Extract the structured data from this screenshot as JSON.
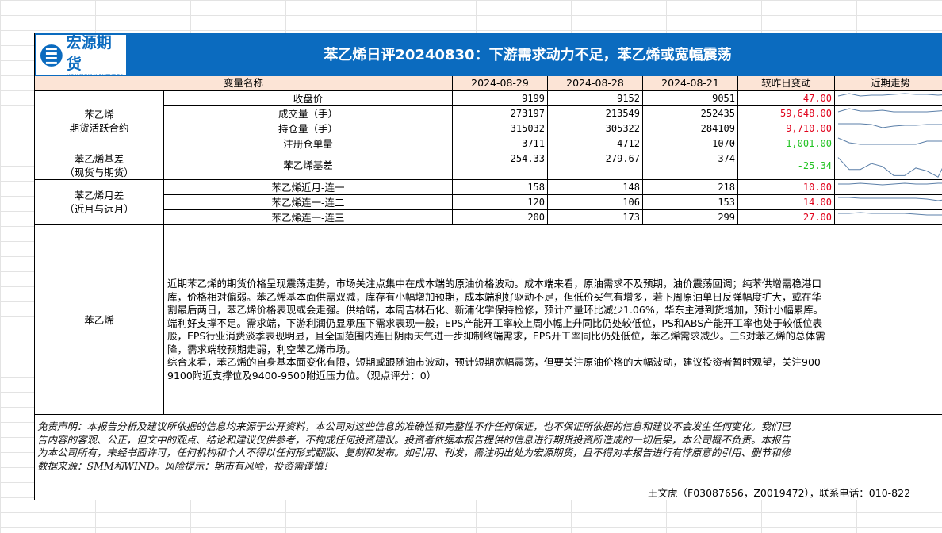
{
  "logo": {
    "cn": "宏源期货",
    "en": "HONGYUAN FUTURES"
  },
  "title": "苯乙烯日评20240830：下游需求动力不足，苯乙烯或宽幅震荡",
  "header": {
    "name": "变量名称",
    "dates": [
      "2024-08-29",
      "2024-08-28",
      "2024-08-21"
    ],
    "change": "较昨日变动",
    "trend": "近期走势"
  },
  "colors": {
    "banner": "#0b6bbf",
    "header_bg": "#fce4d6",
    "up": "#e0001a",
    "down": "#22c322"
  },
  "groups": [
    {
      "label_lines": [
        "苯乙烯",
        "期货活跃合约"
      ]
    },
    {
      "label_lines": [
        "苯乙烯基差",
        "（现货与期货）"
      ]
    },
    {
      "label_lines": [
        "苯乙烯月差",
        "（近月与远月）"
      ]
    }
  ],
  "rows": [
    {
      "name": "收盘价",
      "v": [
        "9199",
        "9152",
        "9051"
      ],
      "change": "47.00",
      "dir": "up"
    },
    {
      "name": "成交量（手）",
      "v": [
        "273197",
        "213549",
        "252435"
      ],
      "change": "59,648.00",
      "dir": "up"
    },
    {
      "name": "持仓量（手）",
      "v": [
        "315032",
        "305322",
        "284109"
      ],
      "change": "9,710.00",
      "dir": "up"
    },
    {
      "name": "注册仓单量",
      "v": [
        "3711",
        "4712",
        "1070"
      ],
      "change": "-1,001.00",
      "dir": "down"
    },
    {
      "name": "苯乙烯基差",
      "v": [
        "254.33",
        "279.67",
        "374"
      ],
      "change": "-25.34",
      "dir": "down"
    },
    {
      "name": "苯乙烯近月-连一",
      "v": [
        "158",
        "148",
        "218"
      ],
      "change": "10.00",
      "dir": "up"
    },
    {
      "name": "苯乙烯连一-连二",
      "v": [
        "120",
        "106",
        "153"
      ],
      "change": "14.00",
      "dir": "up"
    },
    {
      "name": "苯乙烯连一-连三",
      "v": [
        "200",
        "173",
        "299"
      ],
      "change": "27.00",
      "dir": "up"
    }
  ],
  "commentary": {
    "label": "苯乙烯",
    "lines": [
      "近期苯乙烯的期货价格呈现震荡走势，市场关注点集中在成本端的原油价格波动。成本端来看，原油需求不及预期，油价震荡回调；纯苯供增需稳港口",
      "库，价格相对偏弱。苯乙烯基本面供需双减，库存有小幅增加预期，成本端利好驱动不足，但低价买气有增多，若下周原油单日反弹幅度扩大，或在华",
      "割最后两日，苯乙烯价格表现或会走强。供给端，本周吉林石化、新浦化学保持检修，预计产量环比减少1.06%，华东主港到货增加，预计小幅累库。",
      "端利好支撑不足。需求端，下游利润仍显承压下需求表现一般，EPS产能开工率较上周小幅上升同比仍处较低位，PS和ABS产能开工率也处于较低位表",
      "般，EPS行业消费淡季表现明显，且全国范围内连日阴雨天气进一步抑制终端需求，EPS开工率同比仍处低位，苯乙烯需求减少。三S对苯乙烯的总体需",
      "降，需求端较预期走弱，利空苯乙烯市场。",
      "综合来看，苯乙烯的自身基本面变化有限，短期或跟随油市波动，预计短期宽幅震荡，但要关注原油价格的大幅波动，建议投资者暂时观望，关注900",
      "9100附近支撑位及9400-9500附近压力位。（观点评分：0）"
    ]
  },
  "disclaimer": [
    "免责声明：本报告分析及建议所依据的信息均来源于公开资料，本公司对这些信息的准确性和完整性不作任何保证，也不保证所依据的信息和建议不会发生任何变化。我们已",
    "告内容的客观、公正，但文中的观点、结论和建议仅供参考，不构成任何投资建议。投资者依据本报告提供的信息进行期货投资所造成的一切后果，本公司概不负责。本报告",
    "为本公司所有，未经书面许可，任何机构和个人不得以任何形式翻版、复制和发布。如引用、刊发，需注明出处为宏源期货，且不得对本报告进行有悖原意的引用、删节和修",
    "数据来源：SMM和WIND。风险提示：期市有风险，投资需谨慎！"
  ],
  "author": "王文虎（F03087656，Z0019472），联系电话：010-822"
}
